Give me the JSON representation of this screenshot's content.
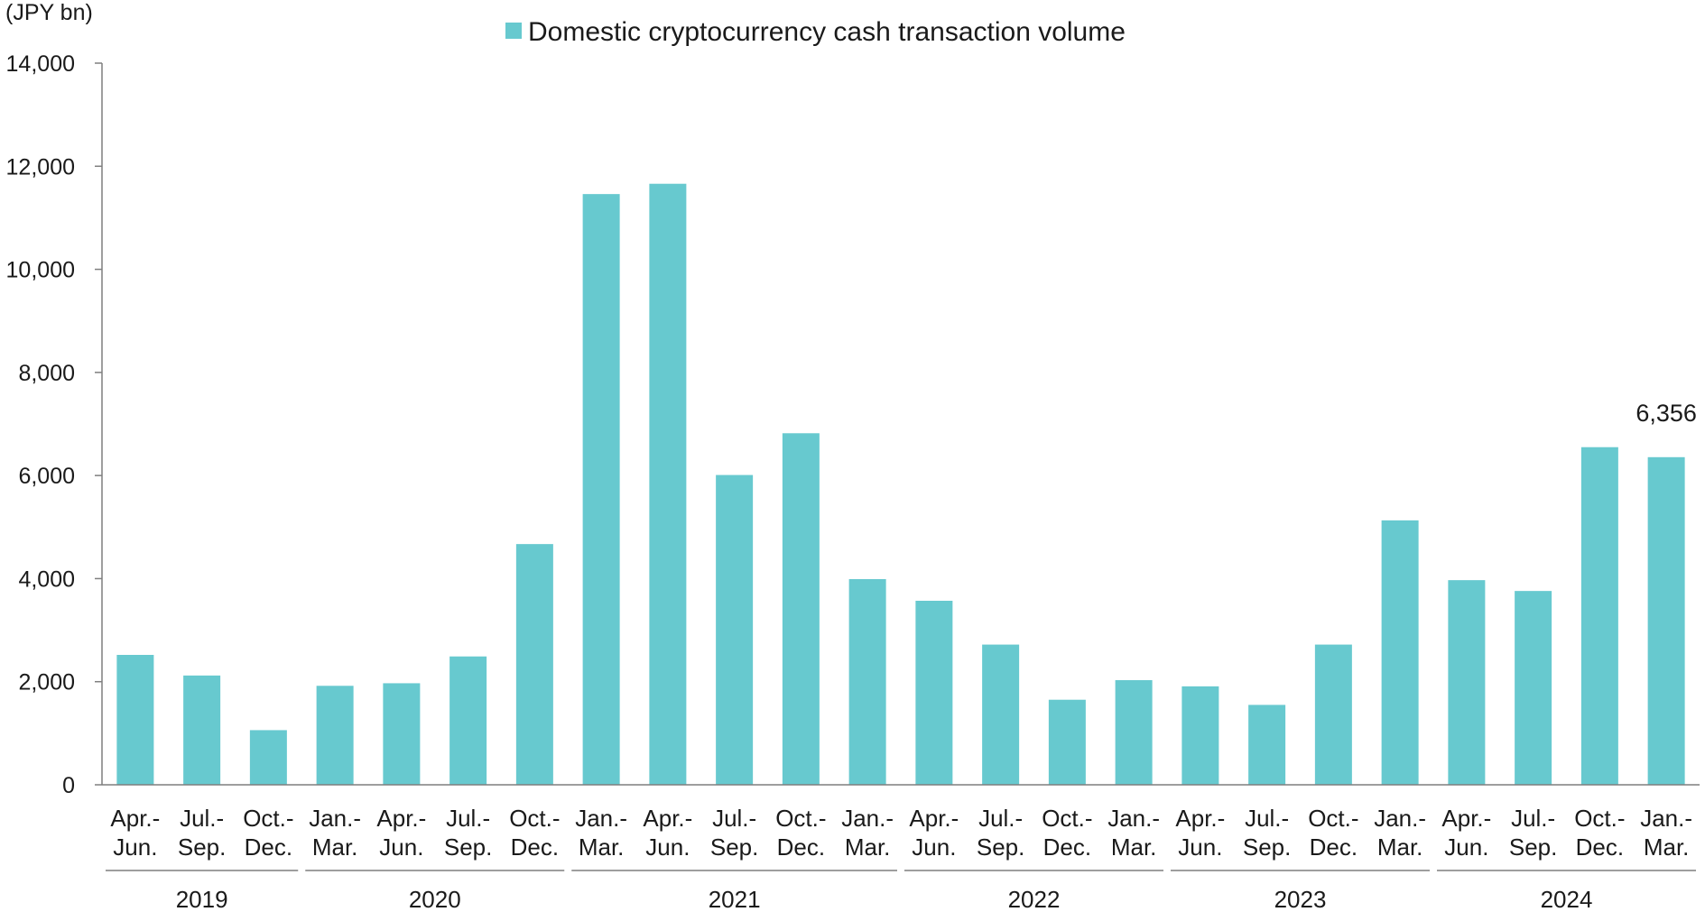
{
  "chart_data": {
    "type": "bar",
    "unit_label": "(JPY bn)",
    "legend": {
      "position": "top",
      "entries": [
        "Domestic cryptocurrency cash transaction volume"
      ]
    },
    "series": [
      {
        "name": "Domestic cryptocurrency cash transaction volume",
        "color": "#67c9cf",
        "values": [
          2520,
          2120,
          1060,
          1920,
          1970,
          2490,
          4670,
          11460,
          11660,
          6010,
          6820,
          3990,
          3570,
          2720,
          1650,
          2030,
          1910,
          1550,
          2720,
          5130,
          3970,
          3760,
          6550,
          6356
        ]
      }
    ],
    "categories": [
      {
        "line1": "Apr.-",
        "line2": "Jun."
      },
      {
        "line1": "Jul.-",
        "line2": "Sep."
      },
      {
        "line1": "Oct.-",
        "line2": "Dec."
      },
      {
        "line1": "Jan.-",
        "line2": "Mar."
      },
      {
        "line1": "Apr.-",
        "line2": "Jun."
      },
      {
        "line1": "Jul.-",
        "line2": "Sep."
      },
      {
        "line1": "Oct.-",
        "line2": "Dec."
      },
      {
        "line1": "Jan.-",
        "line2": "Mar."
      },
      {
        "line1": "Apr.-",
        "line2": "Jun."
      },
      {
        "line1": "Jul.-",
        "line2": "Sep."
      },
      {
        "line1": "Oct.-",
        "line2": "Dec."
      },
      {
        "line1": "Jan.-",
        "line2": "Mar."
      },
      {
        "line1": "Apr.-",
        "line2": "Jun."
      },
      {
        "line1": "Jul.-",
        "line2": "Sep."
      },
      {
        "line1": "Oct.-",
        "line2": "Dec."
      },
      {
        "line1": "Jan.-",
        "line2": "Mar."
      },
      {
        "line1": "Apr.-",
        "line2": "Jun."
      },
      {
        "line1": "Jul.-",
        "line2": "Sep."
      },
      {
        "line1": "Oct.-",
        "line2": "Dec."
      },
      {
        "line1": "Jan.-",
        "line2": "Mar."
      },
      {
        "line1": "Apr.-",
        "line2": "Jun."
      },
      {
        "line1": "Jul.-",
        "line2": "Sep."
      },
      {
        "line1": "Oct.-",
        "line2": "Dec."
      },
      {
        "line1": "Jan.-",
        "line2": "Mar."
      }
    ],
    "year_groups": [
      {
        "label": "2019",
        "from": 0,
        "to": 2
      },
      {
        "label": "2020",
        "from": 3,
        "to": 6
      },
      {
        "label": "2021",
        "from": 7,
        "to": 11
      },
      {
        "label": "2022",
        "from": 12,
        "to": 15
      },
      {
        "label": "2023",
        "from": 16,
        "to": 19
      },
      {
        "label": "2024",
        "from": 20,
        "to": 23
      }
    ],
    "ylim": [
      0,
      14000
    ],
    "yticks": [
      0,
      2000,
      4000,
      6000,
      8000,
      10000,
      12000,
      14000
    ],
    "ytick_labels": [
      "0",
      "2,000",
      "4,000",
      "6,000",
      "8,000",
      "10,000",
      "12,000",
      "14,000"
    ],
    "data_labels": [
      {
        "index": 23,
        "text": "6,356"
      }
    ],
    "grid": false
  }
}
